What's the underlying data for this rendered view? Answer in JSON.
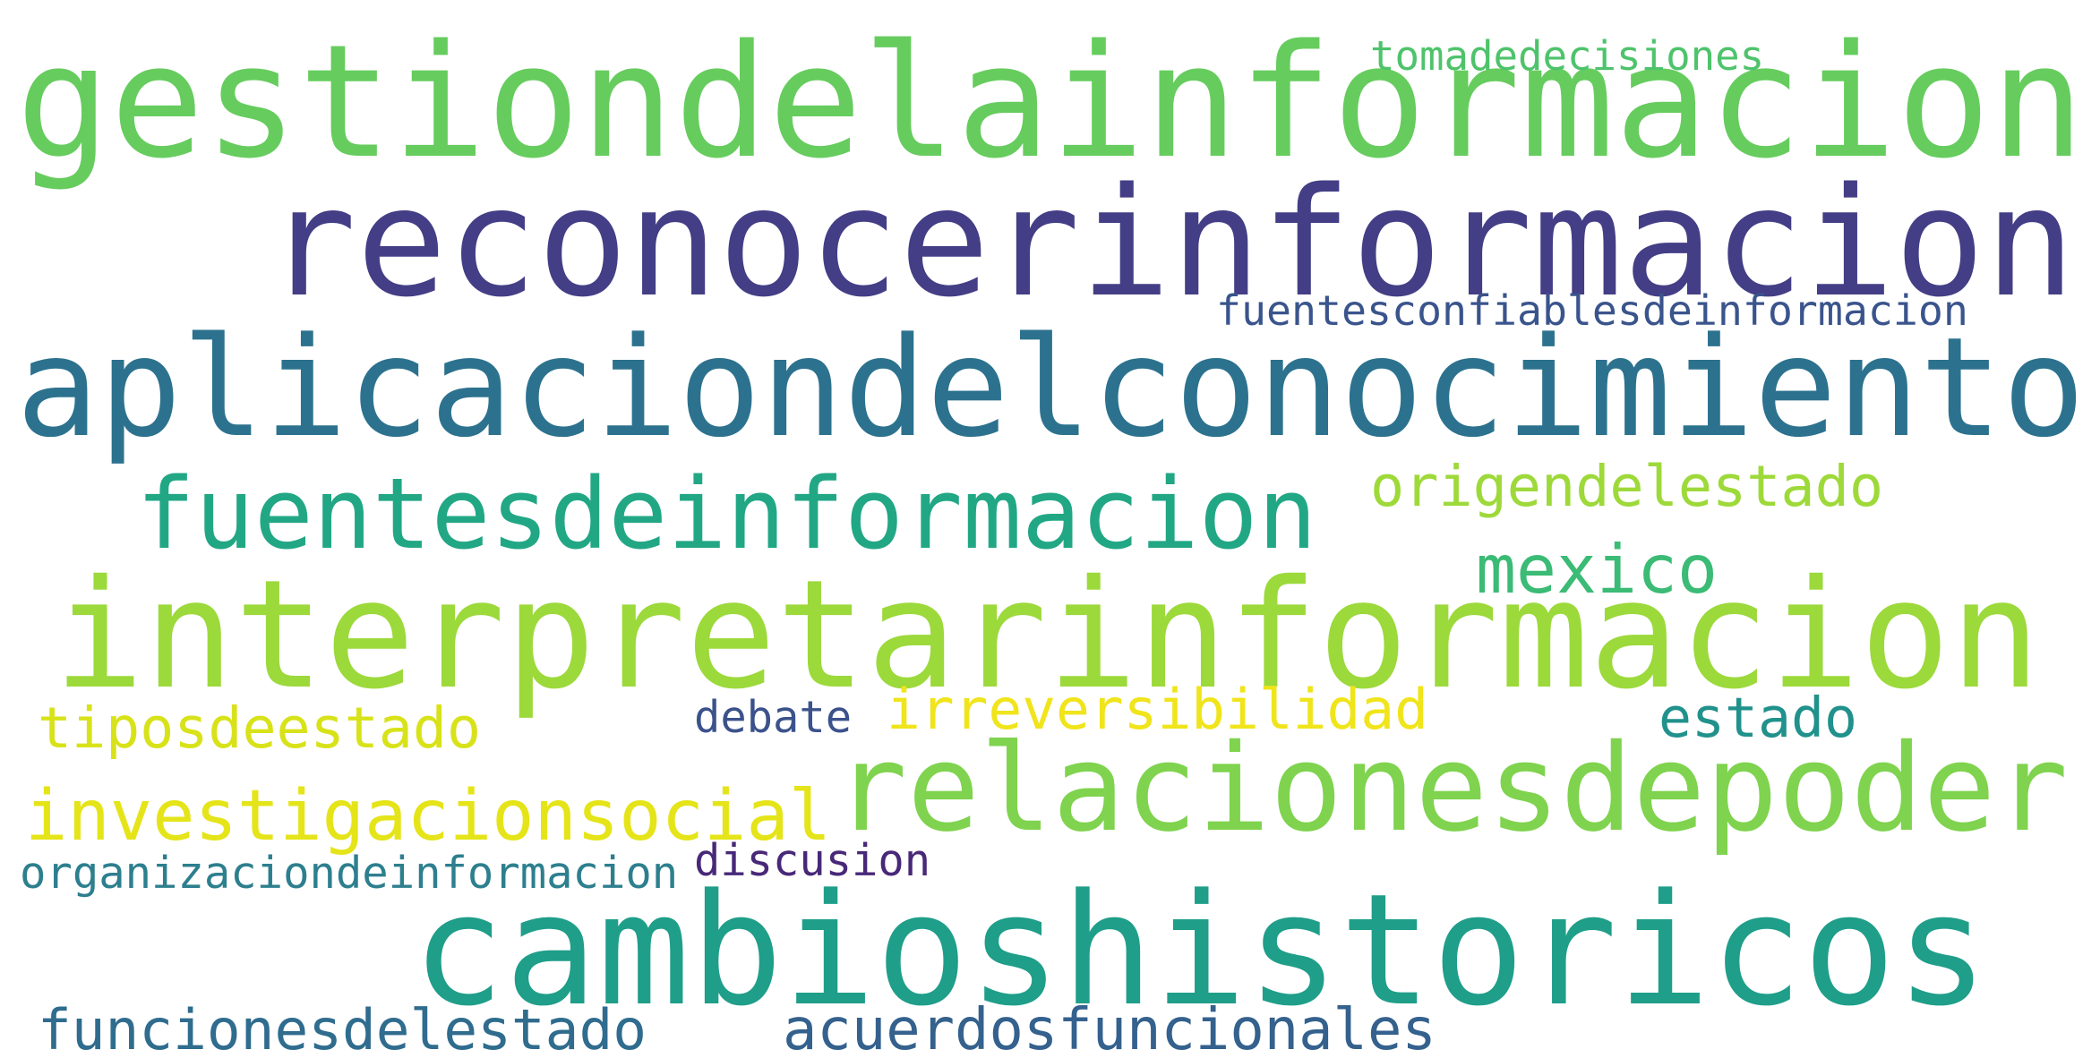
{
  "words": [
    {
      "key": "gestion",
      "text": "gestiondelainformacion",
      "color": "#66cc5e"
    },
    {
      "key": "reconocer",
      "text": "reconocerinformacion",
      "color": "#433e85"
    },
    {
      "key": "aplicacion",
      "text": "aplicaciondelconocimiento",
      "color": "#2c728e"
    },
    {
      "key": "interpretar",
      "text": "interpretarinformacion",
      "color": "#9cd93b"
    },
    {
      "key": "cambios",
      "text": "cambioshistoricos",
      "color": "#1f9e89"
    },
    {
      "key": "relaciones",
      "text": "relacionesdepoder",
      "color": "#7fd34e"
    },
    {
      "key": "fuentes",
      "text": "fuentesdeinformacion",
      "color": "#22a785"
    },
    {
      "key": "investigacion",
      "text": "investigacionsocial",
      "color": "#e5e419"
    },
    {
      "key": "tipos",
      "text": "tiposdeestado",
      "color": "#d8e219"
    },
    {
      "key": "irreversibilidad",
      "text": "irreversibilidad",
      "color": "#f0e41b"
    },
    {
      "key": "mexico",
      "text": "mexico",
      "color": "#3bbb75"
    },
    {
      "key": "estado",
      "text": "estado",
      "color": "#21918c"
    },
    {
      "key": "origen",
      "text": "origendelestado",
      "color": "#9ed93a"
    },
    {
      "key": "funciones",
      "text": "funcionesdelestado",
      "color": "#2f6c8e"
    },
    {
      "key": "acuerdos",
      "text": "acuerdosfuncionales",
      "color": "#34618d"
    },
    {
      "key": "organizacion",
      "text": "organizaciondeinformacion",
      "color": "#2d7f8e"
    },
    {
      "key": "discusion",
      "text": "discusion",
      "color": "#482878"
    },
    {
      "key": "debate",
      "text": "debate",
      "color": "#3b528b"
    },
    {
      "key": "fuentesconfiables",
      "text": "fuentesconfiablesdeinformacion",
      "color": "#3a548c"
    },
    {
      "key": "toma",
      "text": "tomadedecisiones",
      "color": "#4ec36b"
    }
  ]
}
